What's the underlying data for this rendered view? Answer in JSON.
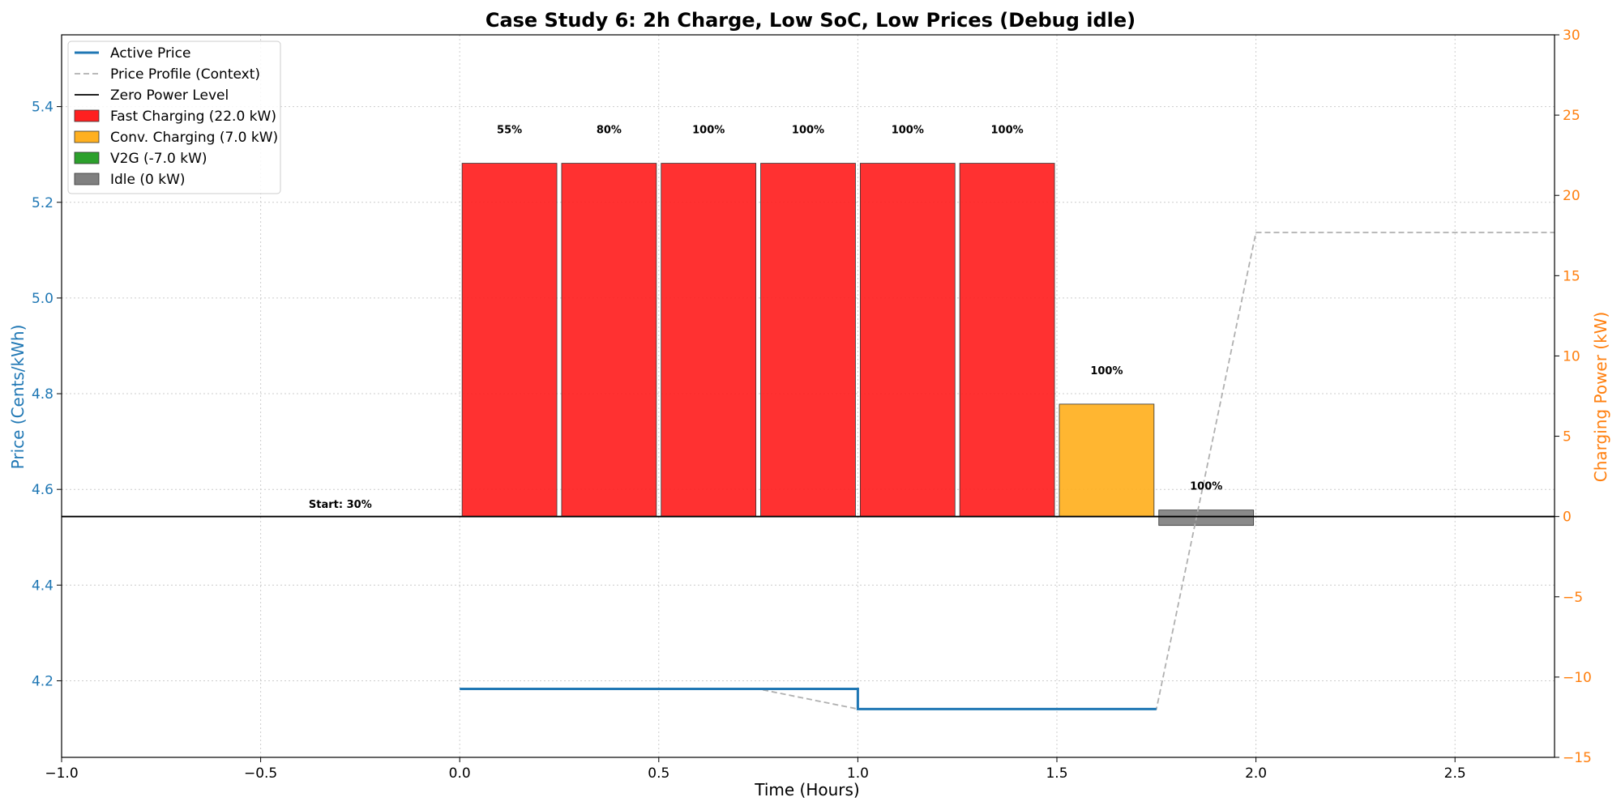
{
  "chart_data": {
    "type": "bar",
    "title": "Case Study 6: 2h Charge, Low SoC, Low Prices (Debug idle)",
    "xlabel": "Time (Hours)",
    "ylabel_left": "Price (Cents/kWh)",
    "ylabel_right": "Charging Power (kW)",
    "xlim": [
      -1.0,
      2.75
    ],
    "ylim_left": [
      4.04,
      5.55
    ],
    "ylim_right": [
      -15,
      30
    ],
    "x_ticks": [
      -1.0,
      -0.5,
      0.0,
      0.5,
      1.0,
      1.5,
      2.0,
      2.5
    ],
    "x_tick_labels": [
      "−1.0",
      "−0.5",
      "0.0",
      "0.5",
      "1.0",
      "1.5",
      "2.0",
      "2.5"
    ],
    "y_left_ticks": [
      4.2,
      4.4,
      4.6,
      4.8,
      5.0,
      5.2,
      5.4
    ],
    "y_left_tick_labels": [
      "4.2",
      "4.4",
      "4.6",
      "4.8",
      "5.0",
      "5.2",
      "5.4"
    ],
    "y_right_ticks": [
      -15,
      -10,
      -5,
      0,
      5,
      10,
      15,
      20,
      25,
      30
    ],
    "y_right_tick_labels": [
      "−15",
      "−10",
      "−5",
      "0",
      "5",
      "10",
      "15",
      "20",
      "25",
      "30"
    ],
    "grid": true,
    "legend_position": "top-left",
    "colors": {
      "left_axis": "#1f77b4",
      "right_axis": "#ff7f0e",
      "fast": "#ff2020",
      "conv": "#ffb020",
      "v2g": "#2ca02c",
      "idle": "#808080",
      "active_price": "#1f77b4",
      "profile": "#b0b0b0"
    },
    "legend": [
      {
        "label": "Active Price",
        "kind": "line",
        "color": "#1f77b4",
        "dash": false
      },
      {
        "label": "Price Profile (Context)",
        "kind": "line",
        "color": "#b0b0b0",
        "dash": true
      },
      {
        "label": "Zero Power Level",
        "kind": "line",
        "color": "#000000",
        "dash": false
      },
      {
        "label": "Fast Charging (22.0 kW)",
        "kind": "patch",
        "color": "#ff2020"
      },
      {
        "label": "Conv. Charging (7.0 kW)",
        "kind": "patch",
        "color": "#ffb020"
      },
      {
        "label": "V2G (-7.0 kW)",
        "kind": "patch",
        "color": "#2ca02c"
      },
      {
        "label": "Idle (0 kW)",
        "kind": "patch",
        "color": "#808080"
      }
    ],
    "bars": [
      {
        "start": 0.0,
        "end": 0.25,
        "power": 22.0,
        "mode": "fast",
        "soc_label": "55%"
      },
      {
        "start": 0.25,
        "end": 0.5,
        "power": 22.0,
        "mode": "fast",
        "soc_label": "80%"
      },
      {
        "start": 0.5,
        "end": 0.75,
        "power": 22.0,
        "mode": "fast",
        "soc_label": "100%"
      },
      {
        "start": 0.75,
        "end": 1.0,
        "power": 22.0,
        "mode": "fast",
        "soc_label": "100%"
      },
      {
        "start": 1.0,
        "end": 1.25,
        "power": 22.0,
        "mode": "fast",
        "soc_label": "100%"
      },
      {
        "start": 1.25,
        "end": 1.5,
        "power": 22.0,
        "mode": "fast",
        "soc_label": "100%"
      },
      {
        "start": 1.5,
        "end": 1.75,
        "power": 7.0,
        "mode": "conv",
        "soc_label": "100%"
      },
      {
        "start": 1.75,
        "end": 2.0,
        "power": 0.0,
        "mode": "idle",
        "soc_label": "100%"
      }
    ],
    "start_label": {
      "x": -0.3,
      "power": 0.8,
      "text": "Start: 30%"
    },
    "active_price": {
      "x": [
        0.0,
        1.0,
        1.0,
        1.75
      ],
      "y": [
        4.183,
        4.183,
        4.141,
        4.141
      ]
    },
    "price_profile": {
      "x": [
        0.0,
        0.75,
        1.0,
        1.75,
        2.0,
        2.75
      ],
      "y": [
        4.183,
        4.183,
        4.141,
        4.141,
        5.137,
        5.137
      ]
    }
  }
}
